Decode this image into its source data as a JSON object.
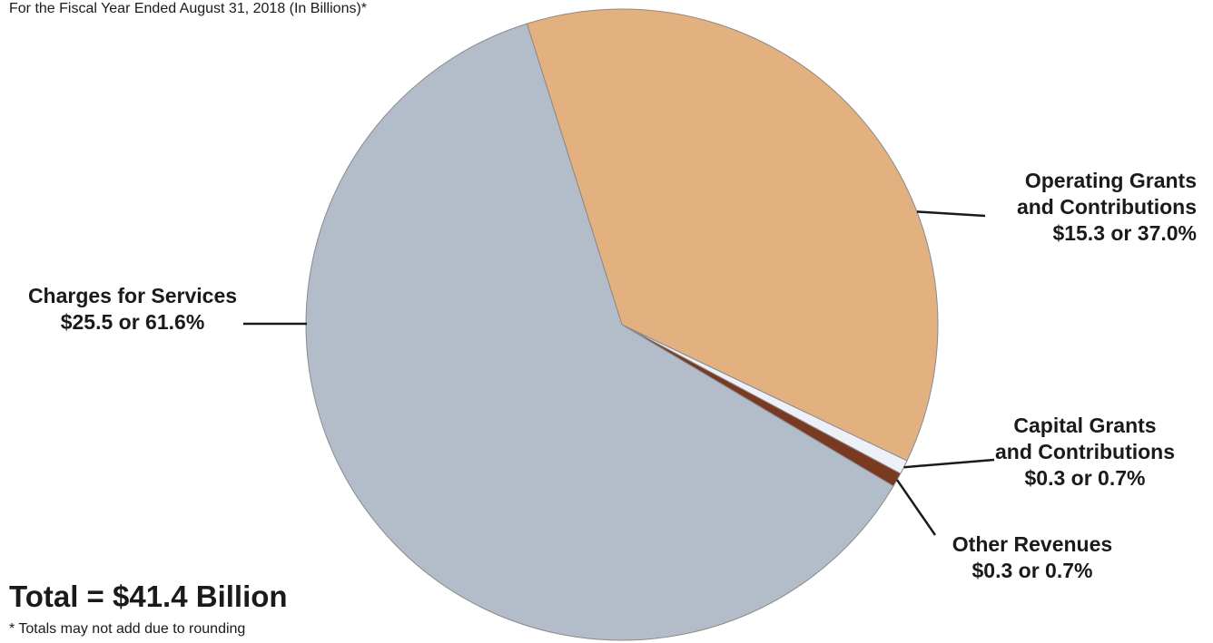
{
  "chart_data": {
    "type": "pie",
    "title": "",
    "subtitle": "For the Fiscal Year Ended August 31, 2018 (In Billions)*",
    "total_label": "Total = $41.4 Billion",
    "footnote": "* Totals may not add due to rounding",
    "slices": [
      {
        "label_lines": [
          "Operating Grants",
          "and Contributions"
        ],
        "amount_text": "$15.3  or  37.0%",
        "value": 15.3,
        "percent": 37.0,
        "color": "#e3b07f"
      },
      {
        "label_lines": [
          "Capital Grants",
          "and Contributions"
        ],
        "amount_text": "$0.3  or  0.7%",
        "value": 0.3,
        "percent": 0.7,
        "color": "#eef0f7"
      },
      {
        "label_lines": [
          "Other Revenues"
        ],
        "amount_text": "$0.3  or  0.7%",
        "value": 0.3,
        "percent": 0.7,
        "color": "#7a3a22"
      },
      {
        "label_lines": [
          "Charges for Services"
        ],
        "amount_text": "$25.5  or  61.6%",
        "value": 25.5,
        "percent": 61.6,
        "color": "#b3bdca"
      }
    ]
  }
}
